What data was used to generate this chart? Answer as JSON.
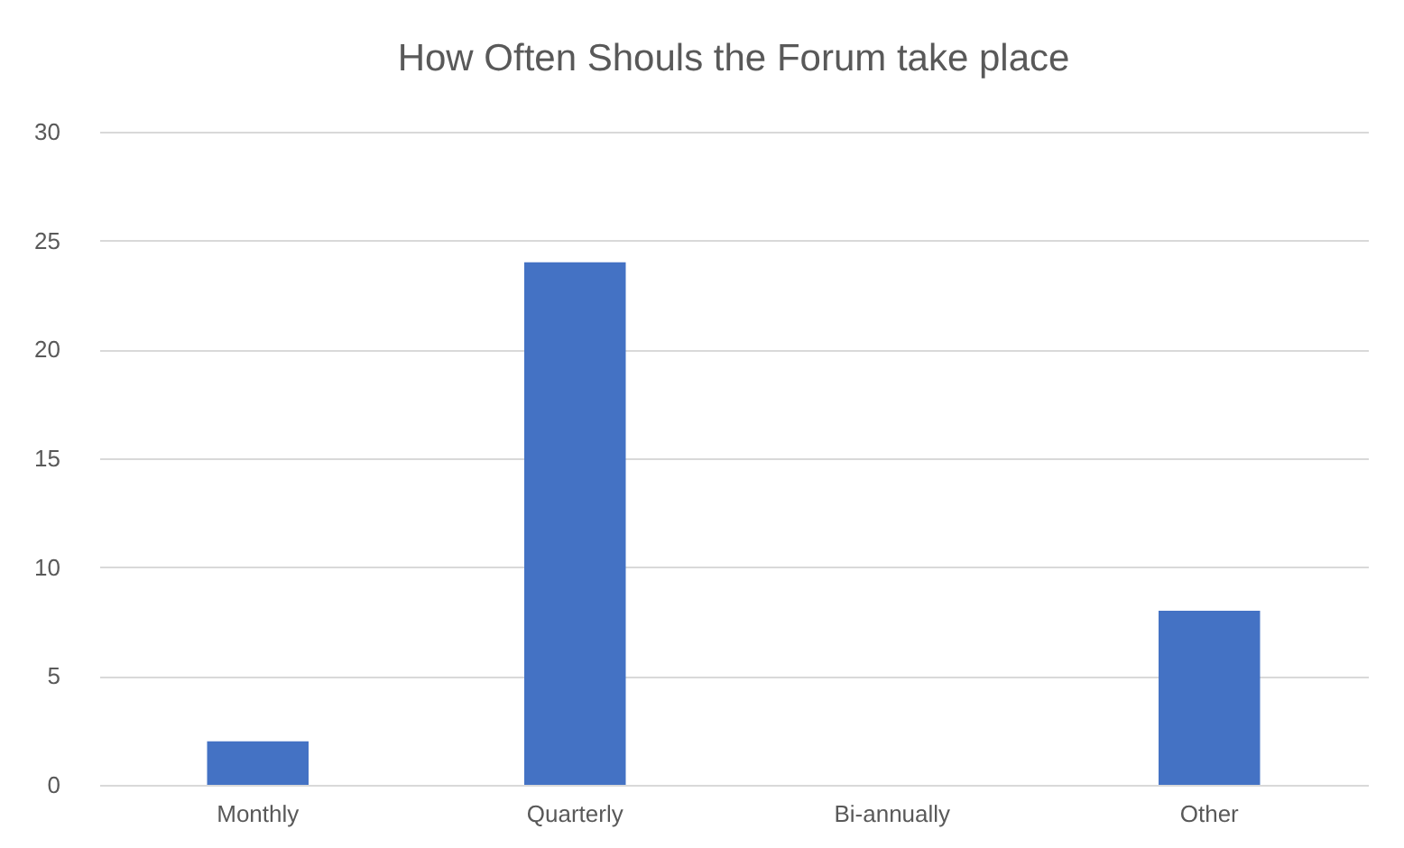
{
  "chart_data": {
    "type": "bar",
    "title": "How Often Shouls the Forum take place",
    "categories": [
      "Monthly",
      "Quarterly",
      "Bi-annually",
      "Other"
    ],
    "values": [
      2,
      24,
      0,
      8
    ],
    "color": "#4472c4",
    "ylim": [
      0,
      30
    ],
    "yticks": [
      0,
      5,
      10,
      15,
      20,
      25,
      30
    ],
    "grid": "y"
  }
}
